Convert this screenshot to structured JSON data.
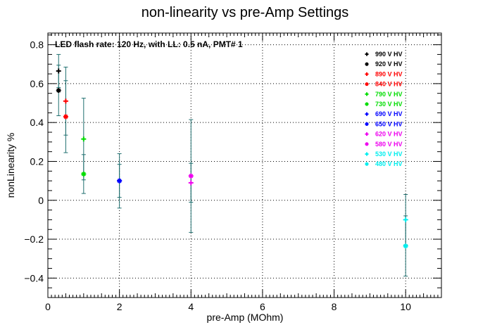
{
  "chart_data": {
    "type": "scatter",
    "title": "non-linearity vs pre-Amp Settings",
    "xlabel": "pre-Amp (MOhm)",
    "ylabel": "nonLinearity %",
    "annotation": "LED flash rate: 120 Hz, with LL: 0.5 nA, PMT# 1",
    "xlim": [
      0,
      11
    ],
    "ylim": [
      -0.5,
      0.86
    ],
    "x_ticks": [
      0,
      2,
      4,
      6,
      8,
      10
    ],
    "x_tick_labels": [
      "0",
      "2",
      "4",
      "6",
      "8",
      "10"
    ],
    "y_ticks": [
      -0.4,
      -0.2,
      0,
      0.2,
      0.4,
      0.6,
      0.8
    ],
    "y_tick_labels": [
      "−0.4",
      "−0.2",
      "0",
      "0.2",
      "0.4",
      "0.6",
      "0.8"
    ],
    "grid": true,
    "legend_position": "top-right",
    "error_bar_color": "#1f6f6f",
    "series": [
      {
        "name": "990 V HV",
        "color": "#000000",
        "marker": "+",
        "points": [
          {
            "x": 0.3,
            "y": 0.665,
            "err": 0.085
          }
        ]
      },
      {
        "name": "920 V HV",
        "color": "#000000",
        "marker": "*",
        "points": [
          {
            "x": 0.3,
            "y": 0.565,
            "err": 0.13
          }
        ]
      },
      {
        "name": "890 V HV",
        "color": "#ff0000",
        "marker": "+",
        "points": [
          {
            "x": 0.5,
            "y": 0.51,
            "err": 0.175
          }
        ]
      },
      {
        "name": "840 V HV",
        "color": "#ff0000",
        "marker": "*",
        "points": [
          {
            "x": 0.5,
            "y": 0.43,
            "err": 0.185
          }
        ]
      },
      {
        "name": "790 V HV",
        "color": "#00dd00",
        "marker": "+",
        "points": [
          {
            "x": 1,
            "y": 0.315,
            "err": 0.21
          }
        ]
      },
      {
        "name": "730 V HV",
        "color": "#00dd00",
        "marker": "*",
        "points": [
          {
            "x": 1,
            "y": 0.135,
            "err": 0.1
          }
        ]
      },
      {
        "name": "690 V HV",
        "color": "#0000ff",
        "marker": "+",
        "points": [
          {
            "x": 2,
            "y": 0.1,
            "err": 0.14
          }
        ]
      },
      {
        "name": "650 V HV",
        "color": "#0000ff",
        "marker": "*",
        "points": [
          {
            "x": 2,
            "y": 0.1,
            "err": 0.085
          }
        ]
      },
      {
        "name": "620 V HV",
        "color": "#ee00ee",
        "marker": "+",
        "points": [
          {
            "x": 4,
            "y": 0.09,
            "err": 0.1
          }
        ]
      },
      {
        "name": "580 V HV",
        "color": "#ee00ee",
        "marker": "*",
        "points": [
          {
            "x": 4,
            "y": 0.125,
            "err": 0.29
          }
        ]
      },
      {
        "name": "530 V HV",
        "color": "#00eeee",
        "marker": "+",
        "points": [
          {
            "x": 10,
            "y": -0.1,
            "err": 0.13
          }
        ]
      },
      {
        "name": "480 V HV",
        "color": "#00eeee",
        "marker": "*",
        "points": [
          {
            "x": 10,
            "y": -0.235,
            "err": 0.155
          }
        ]
      }
    ]
  }
}
